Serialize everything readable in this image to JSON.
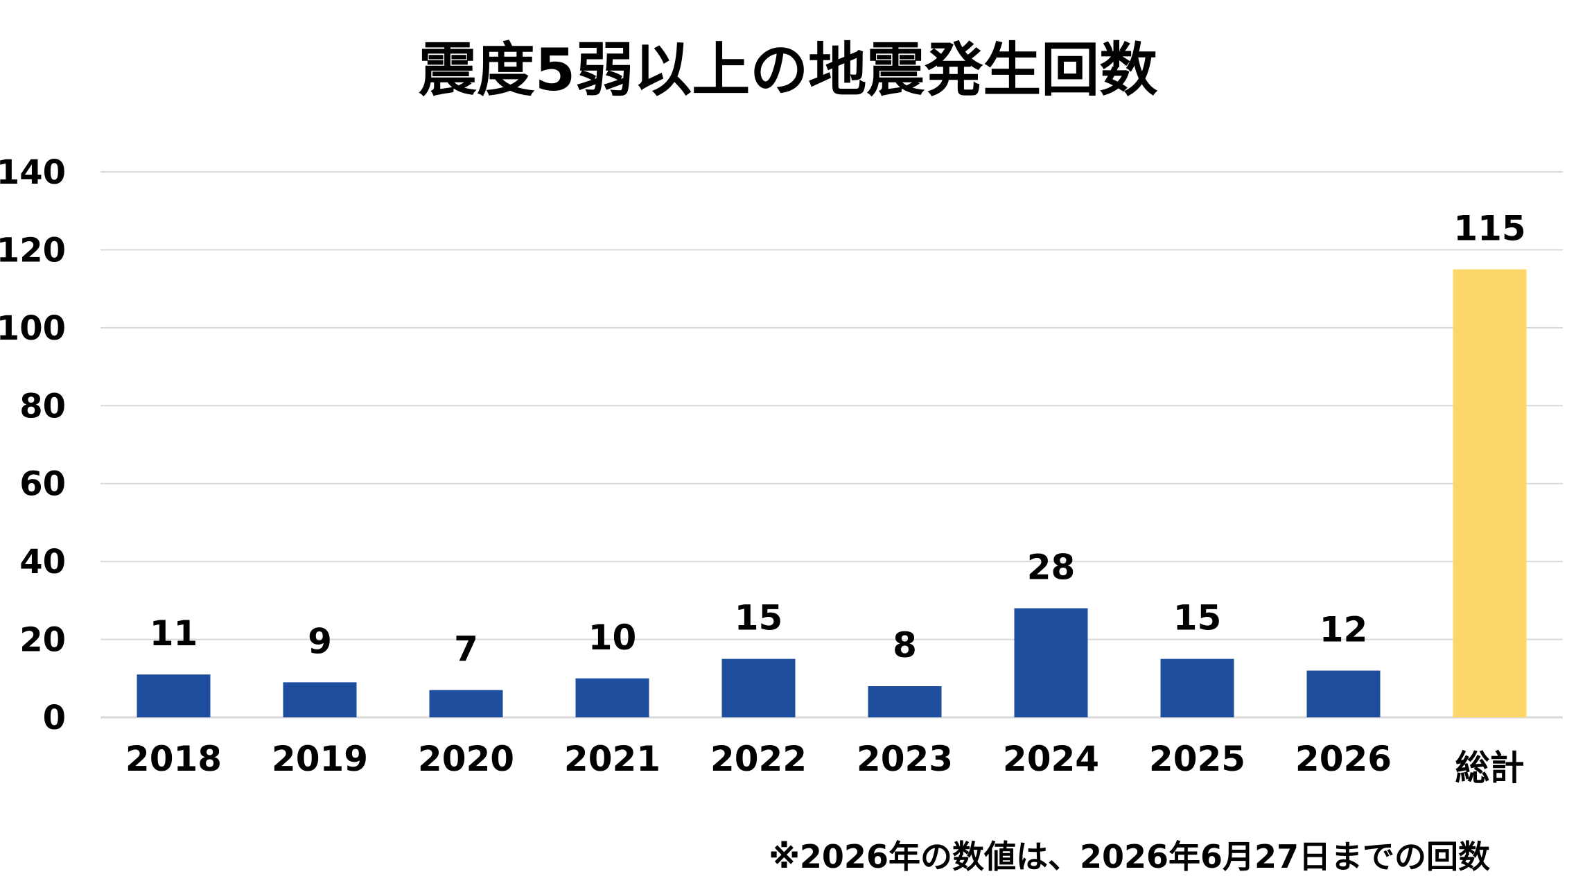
{
  "chart_data": {
    "type": "bar",
    "title": "震度5弱以上の地震発生回数",
    "categories": [
      "2018",
      "2019",
      "2020",
      "2021",
      "2022",
      "2023",
      "2024",
      "2025",
      "2026",
      "総計"
    ],
    "values": [
      11,
      9,
      7,
      10,
      15,
      8,
      28,
      15,
      12,
      115
    ],
    "data_labels": [
      "11",
      "9",
      "7",
      "10",
      "15",
      "8",
      "28",
      "15",
      "12",
      "115"
    ],
    "ylim": [
      0,
      140
    ],
    "yticks": [
      "0",
      "20",
      "40",
      "60",
      "80",
      "100",
      "120",
      "140"
    ],
    "ytick_values": [
      0,
      20,
      40,
      60,
      80,
      100,
      120,
      140
    ],
    "grid": true,
    "legend": "none",
    "colors": {
      "bar": "#1f4e9e",
      "total_bar": "#fdd76a"
    },
    "footnote": "※2026年の数値は、2026年6月27日までの回数"
  }
}
